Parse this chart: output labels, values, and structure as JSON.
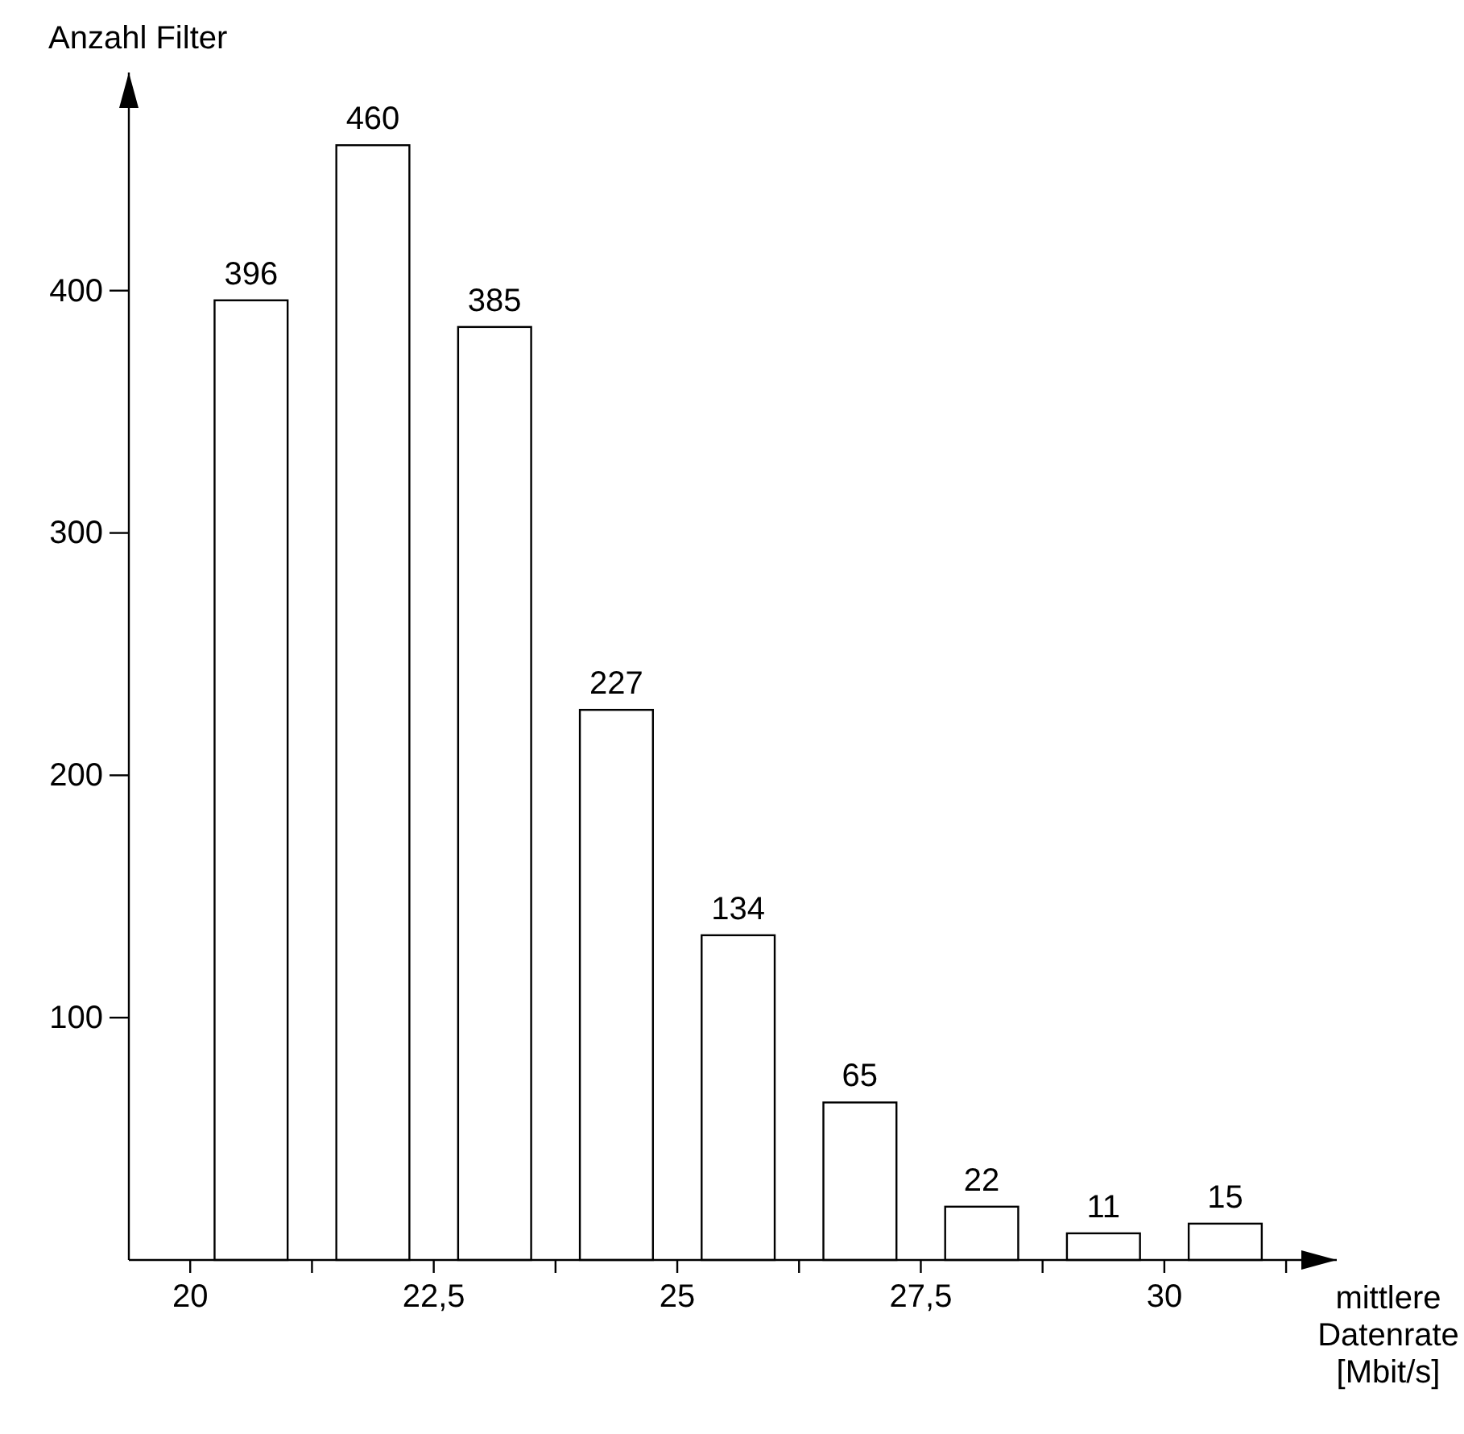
{
  "chart_data": {
    "type": "bar",
    "xlabel": "mittlere Datenrate [Mbit/s]",
    "ylabel": "Anzahl Filter",
    "x": [
      20.625,
      21.875,
      23.125,
      24.375,
      25.625,
      26.875,
      28.125,
      29.375,
      30.625
    ],
    "values": [
      396,
      460,
      385,
      227,
      134,
      65,
      22,
      11,
      15
    ],
    "color": "#ffffff",
    "data_labels": true,
    "grid": false,
    "xlim": [
      19.37,
      31.77
    ],
    "ylim": [
      0,
      490
    ],
    "xticks": [
      20,
      {
        "value": 21.25,
        "label": null
      },
      {
        "value": 22.5,
        "label": "22,5"
      },
      {
        "value": 23.75,
        "label": null
      },
      25,
      {
        "value": 26.25,
        "label": null
      },
      {
        "value": 27.5,
        "label": "27,5"
      },
      {
        "value": 28.75,
        "label": null
      },
      30,
      {
        "value": 31.25,
        "label": null
      }
    ],
    "yticks": [
      100,
      200,
      300,
      400
    ]
  }
}
